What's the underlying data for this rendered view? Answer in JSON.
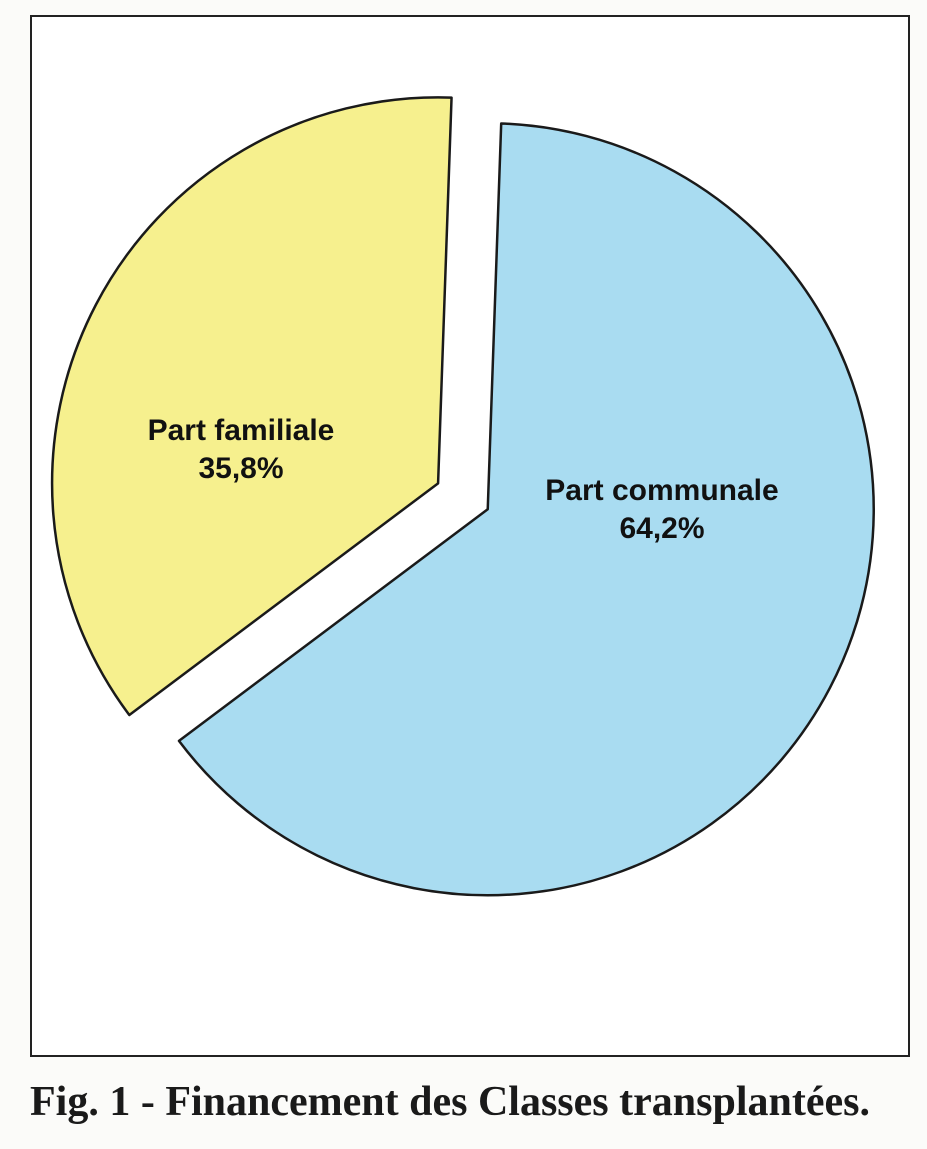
{
  "chart_data": {
    "type": "pie",
    "title": "",
    "slices": [
      {
        "label": "Part communale",
        "value_label": "64,2%",
        "value": 64.2,
        "color": "#a9dcf1",
        "exploded": true
      },
      {
        "label": "Part familiale",
        "value_label": "35,8%",
        "value": 35.8,
        "color": "#f6f08e",
        "exploded": true
      }
    ],
    "legend": "none"
  },
  "caption": {
    "prefix": "Fig. 1 - ",
    "text": "Financement des Classes transplantées."
  }
}
